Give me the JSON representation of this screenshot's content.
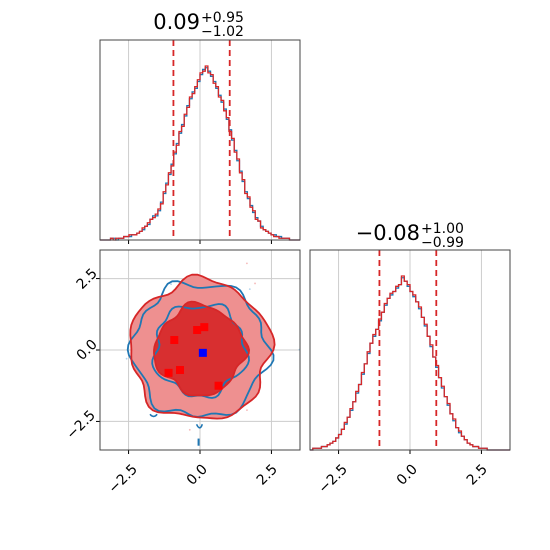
{
  "chart_data": [
    {
      "type": "histogram",
      "panel": "marginal-x",
      "title": {
        "median": "0.09",
        "upper": "+0.95",
        "lower": "−1.02"
      },
      "xlim": [
        -3.5,
        3.5
      ],
      "quantiles": [
        -0.93,
        1.04
      ],
      "bin_edges_range": [
        -3.5,
        3.5
      ],
      "series": [
        {
          "color": "#1f77b4",
          "counts": [
            0,
            0,
            0,
            0,
            1,
            1,
            0,
            1,
            1,
            2,
            2,
            2,
            3,
            3,
            4,
            5,
            6,
            8,
            9,
            12,
            14,
            14,
            17,
            22,
            27,
            33,
            38,
            44,
            50,
            56,
            62,
            67,
            72,
            78,
            82,
            86,
            88,
            92,
            96,
            99,
            100,
            98,
            95,
            92,
            88,
            84,
            80,
            76,
            70,
            64,
            58,
            52,
            46,
            40,
            34,
            28,
            24,
            20,
            16,
            13,
            11,
            8,
            6,
            5,
            4,
            3,
            3,
            2,
            2,
            1,
            1,
            1,
            0,
            0,
            0,
            0
          ]
        },
        {
          "color": "#d62728",
          "counts": [
            0,
            0,
            0,
            0,
            1,
            0,
            1,
            1,
            1,
            2,
            2,
            3,
            3,
            3,
            4,
            5,
            7,
            8,
            10,
            12,
            13,
            15,
            18,
            21,
            28,
            32,
            39,
            43,
            51,
            55,
            63,
            66,
            73,
            77,
            83,
            85,
            89,
            93,
            97,
            98,
            101,
            97,
            96,
            91,
            89,
            83,
            81,
            75,
            71,
            63,
            59,
            51,
            47,
            39,
            35,
            27,
            25,
            19,
            17,
            12,
            11,
            7,
            6,
            5,
            4,
            3,
            2,
            2,
            1,
            1,
            1,
            1,
            0,
            0,
            0,
            0
          ]
        }
      ]
    },
    {
      "type": "contour",
      "panel": "joint",
      "xlim": [
        -3.5,
        3.5
      ],
      "ylim": [
        -3.5,
        3.5
      ],
      "x_ticks": [
        -2.5,
        0.0,
        2.5
      ],
      "y_ticks": [
        2.5,
        0.0,
        -2.5
      ],
      "truth_marker": {
        "x": 0.1,
        "y": -0.1,
        "color": "#0000ff"
      },
      "points_red": [
        [
          -0.9,
          0.35
        ],
        [
          -0.1,
          0.7
        ],
        [
          0.15,
          0.8
        ],
        [
          -1.1,
          -0.8
        ],
        [
          -0.7,
          -0.7
        ],
        [
          0.65,
          -1.25
        ]
      ],
      "blue_contour_radii": [
        1.6,
        2.35
      ],
      "red_contour_radii": [
        1.55,
        2.45
      ]
    },
    {
      "type": "histogram",
      "panel": "marginal-y",
      "title": {
        "median": "−0.08",
        "upper": "+1.00",
        "lower": "−0.99"
      },
      "xlim": [
        -3.5,
        3.5
      ],
      "quantiles": [
        -1.07,
        0.92
      ],
      "bin_edges_range": [
        -3.5,
        3.5
      ],
      "series": [
        {
          "color": "#1f77b4",
          "counts": [
            0,
            1,
            1,
            1,
            2,
            2,
            3,
            4,
            5,
            7,
            9,
            12,
            15,
            19,
            23,
            28,
            33,
            38,
            44,
            50,
            56,
            62,
            66,
            70,
            75,
            80,
            84,
            88,
            90,
            92,
            94,
            96,
            100,
            98,
            95,
            92,
            89,
            86,
            82,
            77,
            72,
            66,
            60,
            54,
            48,
            42,
            36,
            31,
            26,
            21,
            17,
            13,
            10,
            8,
            6,
            4,
            3,
            2,
            2,
            1,
            1,
            1,
            0,
            0,
            0,
            0,
            0,
            0,
            0,
            0
          ]
        },
        {
          "color": "#d62728",
          "counts": [
            0,
            1,
            1,
            1,
            2,
            2,
            3,
            4,
            5,
            7,
            9,
            12,
            16,
            19,
            24,
            28,
            34,
            38,
            45,
            50,
            57,
            62,
            67,
            70,
            76,
            80,
            85,
            88,
            91,
            92,
            95,
            96,
            101,
            98,
            96,
            92,
            90,
            86,
            83,
            77,
            73,
            66,
            61,
            54,
            49,
            42,
            37,
            31,
            27,
            21,
            18,
            13,
            11,
            8,
            6,
            4,
            3,
            2,
            2,
            1,
            1,
            1,
            0,
            0,
            0,
            0,
            0,
            0,
            0,
            0
          ]
        }
      ]
    }
  ],
  "ticks": {
    "bottom_left": [
      "−2.5",
      "0.0",
      "2.5"
    ],
    "bottom_right": [
      "−2.5",
      "0.0",
      "2.5"
    ],
    "left_joint": [
      "2.5",
      "0.0",
      "−2.5"
    ]
  },
  "colors": {
    "blue": "#1f77b4",
    "red": "#d62728",
    "truth": "#0000ff",
    "grid": "#cccccc"
  }
}
